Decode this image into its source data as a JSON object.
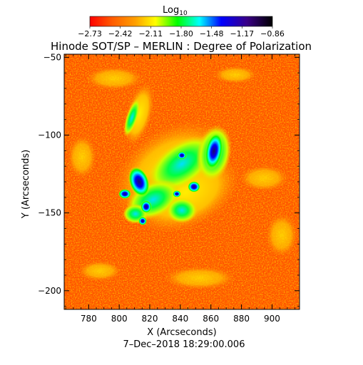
{
  "colorbar": {
    "label_main": "Log",
    "label_sub": "10",
    "ticks": [
      "−2.73",
      "−2.42",
      "−2.11",
      "−1.80",
      "−1.48",
      "−1.17",
      "−0.86"
    ]
  },
  "title": "Hinode SOT/SP – MERLIN : Degree of Polarization",
  "x_axis": {
    "label": "X (Arcseconds)",
    "range": [
      764,
      918
    ],
    "ticks": [
      780,
      800,
      820,
      840,
      860,
      880,
      900
    ]
  },
  "y_axis": {
    "label": "Y (Arcseconds)",
    "range": [
      -212,
      -48
    ],
    "ticks": [
      -50,
      -100,
      -150,
      -200
    ]
  },
  "timestamp": "7–Dec–2018 18:29:00.006",
  "colors": {
    "background": "#ff5a00",
    "palette": [
      "#ff0000",
      "#ff5500",
      "#ff9900",
      "#ffff00",
      "#00ff00",
      "#00ffff",
      "#0000ff",
      "#220077",
      "#000000"
    ]
  }
}
